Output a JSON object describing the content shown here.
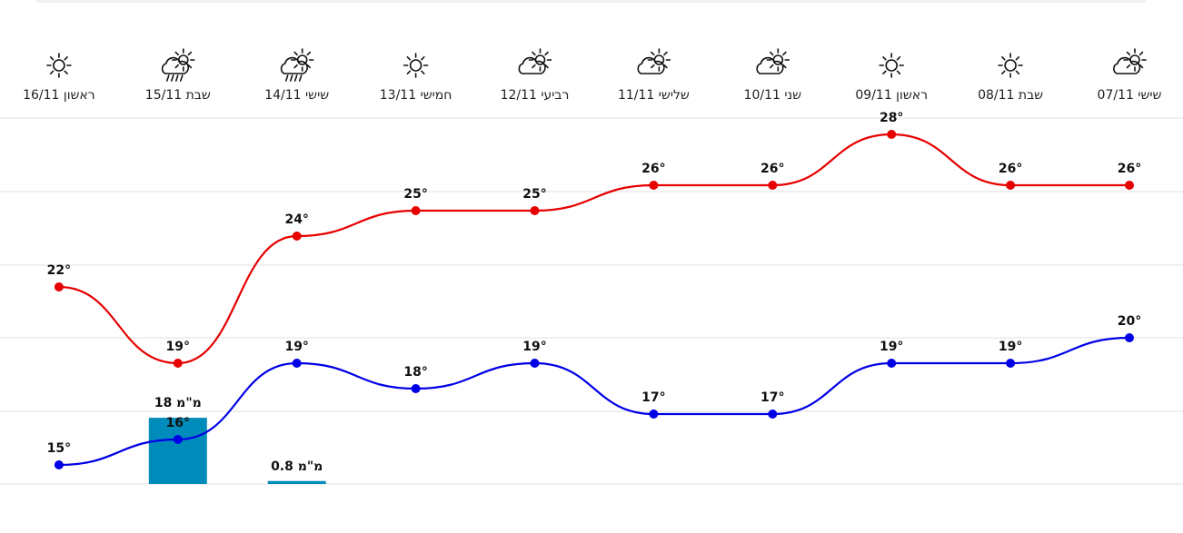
{
  "chart_data": {
    "type": "line",
    "categories": [
      "שישי 07/11",
      "שבת 08/11",
      "ראשון 09/11",
      "שני 10/11",
      "שלישי 11/11",
      "רביעי 12/11",
      "חמישי 13/11",
      "שישי 14/11",
      "שבת 15/11",
      "ראשון 16/11"
    ],
    "series": [
      {
        "color": "#e60000",
        "values": [
          26,
          26,
          28,
          26,
          26,
          25,
          25,
          24,
          19,
          22
        ],
        "value_labels": [
          "26°",
          "26°",
          "28°",
          "26°",
          "26°",
          "25°",
          "25°",
          "24°",
          "19°",
          "22°"
        ]
      },
      {
        "color": "#0000e6",
        "values": [
          20,
          19,
          19,
          17,
          17,
          19,
          18,
          19,
          16,
          15
        ],
        "value_labels": [
          "20°",
          "19°",
          "19°",
          "17°",
          "17°",
          "19°",
          "18°",
          "19°",
          "16°",
          "15°"
        ]
      },
      {
        "type": "bar",
        "color": "#008cba",
        "values": [
          null,
          null,
          null,
          null,
          null,
          null,
          null,
          0.8,
          18,
          null
        ],
        "value_labels": [
          null,
          null,
          null,
          null,
          null,
          null,
          null,
          "מ\"מ 0.8",
          "מ\"מ 18",
          null
        ]
      }
    ]
  }
}
